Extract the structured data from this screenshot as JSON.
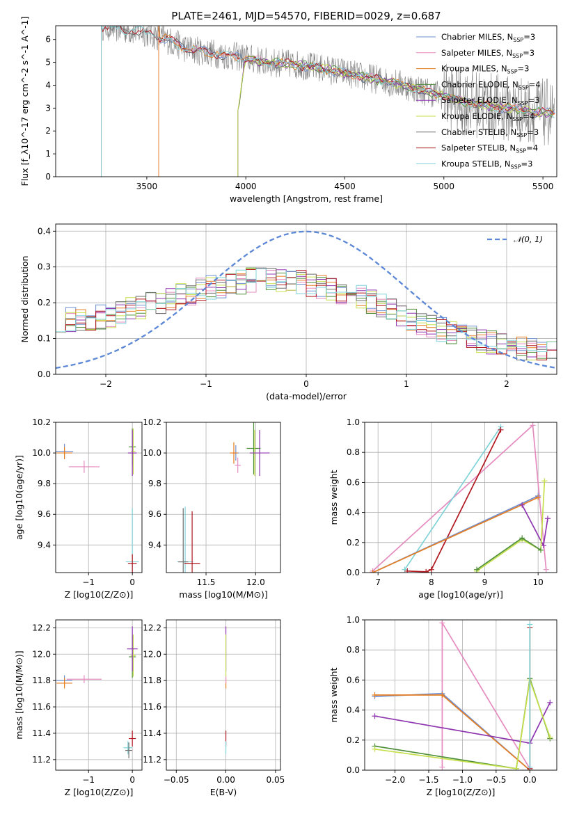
{
  "title": "PLATE=2461, MJD=54570, FIBERID=0029, z=0.687",
  "colors": {
    "Chabrier MILES": "#6f8fd1",
    "Salpeter MILES": "#e58bbf",
    "Kroupa MILES": "#e67e22",
    "Chabrier ELODIE": "#4f8f3a",
    "Salpeter ELODIE": "#8e35b0",
    "Kroupa ELODIE": "#c6e04b",
    "Chabrier STELIB": "#6e6e6e",
    "Salpeter STELIB": "#b0171f",
    "Kroupa STELIB": "#7fd3d8",
    "normal": "#5b87d6",
    "data": "#808080"
  },
  "chart_data": [
    {
      "id": "spectrum",
      "type": "line",
      "xlabel": "wavelength [Angstrom, rest frame]",
      "ylabel": "Flux [f_λ10^-17 erg cm^-2 s^-1 A^-1]",
      "xlim": [
        3040,
        5570
      ],
      "ylim": [
        0,
        6.6
      ],
      "xticks": [
        "3500",
        "4000",
        "4500",
        "5000",
        "5500"
      ],
      "yticks": [
        "0",
        "1",
        "2",
        "3",
        "4",
        "5",
        "6"
      ],
      "legend_placement": "top-right",
      "series": [
        {
          "name": "Chabrier MILES, N_SSP=3",
          "cutoff": 3560
        },
        {
          "name": "Salpeter MILES, N_SSP=3",
          "cutoff": 3560
        },
        {
          "name": "Kroupa MILES, N_SSP=3",
          "cutoff": 3560
        },
        {
          "name": "Chabrier ELODIE, N_SSP=4",
          "cutoff": 3960
        },
        {
          "name": "Salpeter ELODIE, N_SSP=3",
          "cutoff": 3960
        },
        {
          "name": "Kroupa ELODIE, N_SSP=4",
          "cutoff": 3960
        },
        {
          "name": "Chabrier STELIB, N_SSP=3",
          "cutoff": 3270
        },
        {
          "name": "Salpeter STELIB, N_SSP=4",
          "cutoff": 3270
        },
        {
          "name": "Kroupa STELIB, N_SSP=3",
          "cutoff": 3270
        }
      ],
      "model_continuum": [
        [
          3270,
          6.6
        ],
        [
          3500,
          6.3
        ],
        [
          3600,
          6.0
        ],
        [
          3700,
          5.6
        ],
        [
          3800,
          5.45
        ],
        [
          3900,
          5.3
        ],
        [
          4000,
          5.2
        ],
        [
          4100,
          5.0
        ],
        [
          4200,
          4.95
        ],
        [
          4300,
          4.85
        ],
        [
          4400,
          4.7
        ],
        [
          4500,
          4.55
        ],
        [
          4600,
          4.35
        ],
        [
          4700,
          4.2
        ],
        [
          4800,
          4.0
        ],
        [
          4900,
          3.75
        ],
        [
          5000,
          3.55
        ],
        [
          5100,
          3.3
        ],
        [
          5200,
          3.15
        ],
        [
          5300,
          3.0
        ],
        [
          5400,
          2.9
        ],
        [
          5500,
          2.8
        ]
      ]
    },
    {
      "id": "residuals",
      "type": "line",
      "xlabel": "(data-model)/error",
      "ylabel": "Normed distribution",
      "xlim": [
        -2.5,
        2.5
      ],
      "ylim": [
        0,
        0.42
      ],
      "xticks": [
        "−2",
        "−1",
        "0",
        "1",
        "2"
      ],
      "yticks": [
        "0.0",
        "0.1",
        "0.2",
        "0.3",
        "0.4"
      ],
      "legend": "𝒩(0, 1)",
      "legend_placement": "top-right",
      "envelope": [
        [
          -2.5,
          0.15
        ],
        [
          -2.0,
          0.16
        ],
        [
          -1.5,
          0.2
        ],
        [
          -1.0,
          0.24
        ],
        [
          -0.5,
          0.265
        ],
        [
          0,
          0.255
        ],
        [
          0.5,
          0.22
        ],
        [
          1.0,
          0.16
        ],
        [
          1.5,
          0.11
        ],
        [
          2.0,
          0.08
        ],
        [
          2.5,
          0.06
        ]
      ]
    },
    {
      "id": "age-vs-Z",
      "type": "scatter",
      "xlabel": "Z [log10(Z/Z⊙)]",
      "ylabel": "age [log10(age/yr)]",
      "xlim": [
        -1.75,
        0.22
      ],
      "ylim": [
        9.22,
        10.2
      ],
      "xticks": [
        "−1",
        "0"
      ],
      "yticks": [
        "9.4",
        "9.6",
        "9.8",
        "10.0",
        "10.2"
      ],
      "points": [
        {
          "s": "Chabrier MILES",
          "x": -1.55,
          "y": 10.01,
          "ex": 0.2,
          "ey": 0.05
        },
        {
          "s": "Kroupa MILES",
          "x": -1.55,
          "y": 10.0,
          "ex": 0.18,
          "ey": 0.04
        },
        {
          "s": "Salpeter MILES",
          "x": -1.1,
          "y": 9.91,
          "ex": 0.35,
          "ey": 0.04
        },
        {
          "s": "Chabrier ELODIE",
          "x": 0.0,
          "y": 10.04,
          "ex": 0.08,
          "ey": 0.12
        },
        {
          "s": "Kroupa ELODIE",
          "x": 0.02,
          "y": 10.01,
          "ex": 0.05,
          "ey": 0.15
        },
        {
          "s": "Salpeter ELODIE",
          "x": 0.0,
          "y": 10.0,
          "ex": 0.1,
          "ey": 0.15
        },
        {
          "s": "Kroupa STELIB",
          "x": 0.0,
          "y": 9.29,
          "ex": 0.15,
          "ey": 0.35
        },
        {
          "s": "Salpeter STELIB",
          "x": 0.0,
          "y": 9.28,
          "ex": 0.1,
          "ey": 0.06
        }
      ]
    },
    {
      "id": "age-vs-mass",
      "type": "scatter",
      "xlabel": "mass [log10(M/M⊙)]",
      "ylabel": "",
      "xlim": [
        11.1,
        12.25
      ],
      "ylim": [
        9.22,
        10.2
      ],
      "xticks": [
        "11.5",
        "12.0"
      ],
      "yticks": [
        "9.4",
        "9.6",
        "9.8",
        "10.0",
        "10.2"
      ],
      "points": [
        {
          "s": "Chabrier MILES",
          "x": 11.8,
          "y": 10.0,
          "ex": 0.03,
          "ey": 0.05
        },
        {
          "s": "Kroupa MILES",
          "x": 11.78,
          "y": 10.0,
          "ex": 0.04,
          "ey": 0.07
        },
        {
          "s": "Salpeter MILES",
          "x": 11.82,
          "y": 9.92,
          "ex": 0.03,
          "ey": 0.05
        },
        {
          "s": "Chabrier ELODIE",
          "x": 11.98,
          "y": 10.03,
          "ex": 0.07,
          "ey": 0.17
        },
        {
          "s": "Kroupa ELODIE",
          "x": 11.99,
          "y": 10.0,
          "ex": 0.05,
          "ey": 0.15
        },
        {
          "s": "Salpeter ELODIE",
          "x": 12.04,
          "y": 10.0,
          "ex": 0.1,
          "ey": 0.15
        },
        {
          "s": "Kroupa STELIB",
          "x": 11.29,
          "y": 9.29,
          "ex": 0.08,
          "ey": 0.36
        },
        {
          "s": "Chabrier STELIB",
          "x": 11.27,
          "y": 9.29,
          "ex": 0.05,
          "ey": 0.35
        },
        {
          "s": "Salpeter STELIB",
          "x": 11.36,
          "y": 9.28,
          "ex": 0.08,
          "ey": 0.34
        }
      ]
    },
    {
      "id": "weight-vs-age",
      "type": "line",
      "xlabel": "age [log10(age/yr)]",
      "ylabel": "mass weight",
      "xlim": [
        6.75,
        10.35
      ],
      "ylim": [
        0,
        1.0
      ],
      "xticks": [
        "7",
        "8",
        "9",
        "10"
      ],
      "yticks": [
        "0.0",
        "0.2",
        "0.4",
        "0.6",
        "0.8",
        "1.0"
      ],
      "series": [
        {
          "s": "Salpeter MILES",
          "points": [
            [
              6.9,
              0.01
            ],
            [
              9.9,
              0.98
            ],
            [
              10.15,
              0.02
            ]
          ]
        },
        {
          "s": "Kroupa STELIB",
          "points": [
            [
              7.5,
              0.02
            ],
            [
              9.3,
              0.97
            ]
          ]
        },
        {
          "s": "Salpeter STELIB",
          "points": [
            [
              7.55,
              0.01
            ],
            [
              7.9,
              0.005
            ],
            [
              8.0,
              0.02
            ],
            [
              9.3,
              0.95
            ]
          ]
        },
        {
          "s": "Chabrier MILES",
          "points": [
            [
              6.9,
              0.0
            ],
            [
              10.0,
              0.51
            ]
          ]
        },
        {
          "s": "Kroupa MILES",
          "points": [
            [
              6.9,
              0.0
            ],
            [
              10.0,
              0.5
            ]
          ]
        },
        {
          "s": "Salpeter ELODIE",
          "points": [
            [
              9.7,
              0.45
            ],
            [
              10.1,
              0.18
            ],
            [
              10.18,
              0.36
            ]
          ]
        },
        {
          "s": "Kroupa ELODIE",
          "points": [
            [
              8.85,
              0.01
            ],
            [
              9.7,
              0.22
            ],
            [
              10.05,
              0.15
            ],
            [
              10.12,
              0.61
            ]
          ]
        },
        {
          "s": "Chabrier ELODIE",
          "points": [
            [
              8.85,
              0.02
            ],
            [
              9.7,
              0.23
            ],
            [
              10.05,
              0.15
            ]
          ]
        }
      ]
    },
    {
      "id": "mass-vs-Z",
      "type": "scatter",
      "xlabel": "Z [log10(Z/Z⊙)]",
      "ylabel": "mass [log10(M/M⊙)]",
      "xlim": [
        -1.75,
        0.22
      ],
      "ylim": [
        11.12,
        12.26
      ],
      "xticks": [
        "−1",
        "0"
      ],
      "yticks": [
        "11.2",
        "11.4",
        "11.6",
        "11.8",
        "12.0",
        "12.2"
      ],
      "points": [
        {
          "s": "Chabrier MILES",
          "x": -1.55,
          "y": 11.8,
          "ex": 0.18,
          "ey": 0.04
        },
        {
          "s": "Kroupa MILES",
          "x": -1.55,
          "y": 11.78,
          "ex": 0.18,
          "ey": 0.04
        },
        {
          "s": "Salpeter MILES",
          "x": -1.1,
          "y": 11.81,
          "ex": 0.4,
          "ey": 0.03
        },
        {
          "s": "Chabrier ELODIE",
          "x": 0.0,
          "y": 11.98,
          "ex": 0.08,
          "ey": 0.16
        },
        {
          "s": "Kroupa ELODIE",
          "x": 0.02,
          "y": 11.99,
          "ex": 0.06,
          "ey": 0.16
        },
        {
          "s": "Salpeter ELODIE",
          "x": 0.0,
          "y": 12.04,
          "ex": 0.12,
          "ey": 0.17
        },
        {
          "s": "Kroupa STELIB",
          "x": -0.1,
          "y": 11.29,
          "ex": 0.1,
          "ey": 0.05
        },
        {
          "s": "Chabrier STELIB",
          "x": -0.08,
          "y": 11.27,
          "ex": 0.08,
          "ey": 0.06
        },
        {
          "s": "Salpeter STELIB",
          "x": 0.0,
          "y": 11.36,
          "ex": 0.08,
          "ey": 0.06
        }
      ]
    },
    {
      "id": "mass-vs-EBV",
      "type": "scatter",
      "xlabel": "E(B-V)",
      "ylabel": "",
      "xlim": [
        -0.06,
        0.055
      ],
      "ylim": [
        11.12,
        12.26
      ],
      "xticks": [
        "−0.05",
        "0.00",
        "0.05"
      ],
      "yticks": [
        "11.2",
        "11.4",
        "11.6",
        "11.8",
        "12.0",
        "12.2"
      ],
      "points": [
        {
          "s": "Kroupa MILES",
          "x": 0.0,
          "y": 11.78,
          "ex": 0,
          "ey": 0.04
        },
        {
          "s": "Salpeter MILES",
          "x": 0.0,
          "y": 11.81,
          "ex": 0,
          "ey": 0.03
        },
        {
          "s": "Salpeter ELODIE",
          "x": 0.0,
          "y": 12.04,
          "ex": 0,
          "ey": 0.17
        },
        {
          "s": "Kroupa ELODIE",
          "x": 0.0,
          "y": 11.99,
          "ex": 0,
          "ey": 0.16
        },
        {
          "s": "Salpeter STELIB",
          "x": 0.0,
          "y": 11.36,
          "ex": 0,
          "ey": 0.06
        },
        {
          "s": "Kroupa STELIB",
          "x": 0.0,
          "y": 11.29,
          "ex": 0,
          "ey": 0.05
        }
      ]
    },
    {
      "id": "weight-vs-Z",
      "type": "line",
      "xlabel": "Z [log10(Z/Z⊙)]",
      "ylabel": "mass weight",
      "xlim": [
        -2.45,
        0.4
      ],
      "ylim": [
        0,
        1.0
      ],
      "xticks": [
        "−2.0",
        "−1.5",
        "−1.0",
        "−0.5",
        "0.0"
      ],
      "yticks": [
        "0.0",
        "0.2",
        "0.4",
        "0.6",
        "0.8",
        "1.0"
      ],
      "series": [
        {
          "s": "Salpeter MILES",
          "points": [
            [
              -1.3,
              0.02
            ],
            [
              -1.3,
              0.98
            ],
            [
              0.0,
              0.01
            ]
          ]
        },
        {
          "s": "Chabrier MILES",
          "points": [
            [
              -2.3,
              0.49
            ],
            [
              -1.3,
              0.51
            ],
            [
              0.0,
              0.0
            ]
          ]
        },
        {
          "s": "Kroupa MILES",
          "points": [
            [
              -2.3,
              0.5
            ],
            [
              -1.3,
              0.5
            ],
            [
              0.0,
              0.0
            ]
          ]
        },
        {
          "s": "Salpeter ELODIE",
          "points": [
            [
              -2.3,
              0.36
            ],
            [
              0.0,
              0.18
            ],
            [
              0.3,
              0.45
            ]
          ]
        },
        {
          "s": "Chabrier ELODIE",
          "points": [
            [
              -2.3,
              0.16
            ],
            [
              -0.2,
              0.01
            ],
            [
              0.0,
              0.61
            ],
            [
              0.3,
              0.21
            ]
          ]
        },
        {
          "s": "Kroupa ELODIE",
          "points": [
            [
              -2.3,
              0.14
            ],
            [
              -0.2,
              0.01
            ],
            [
              0.0,
              0.6
            ],
            [
              0.3,
              0.22
            ]
          ]
        },
        {
          "s": "Salpeter STELIB",
          "points": [
            [
              0.0,
              0.95
            ],
            [
              0.0,
              0.01
            ]
          ]
        },
        {
          "s": "Kroupa STELIB",
          "points": [
            [
              0.0,
              0.97
            ],
            [
              0.0,
              0.02
            ]
          ]
        }
      ]
    }
  ]
}
